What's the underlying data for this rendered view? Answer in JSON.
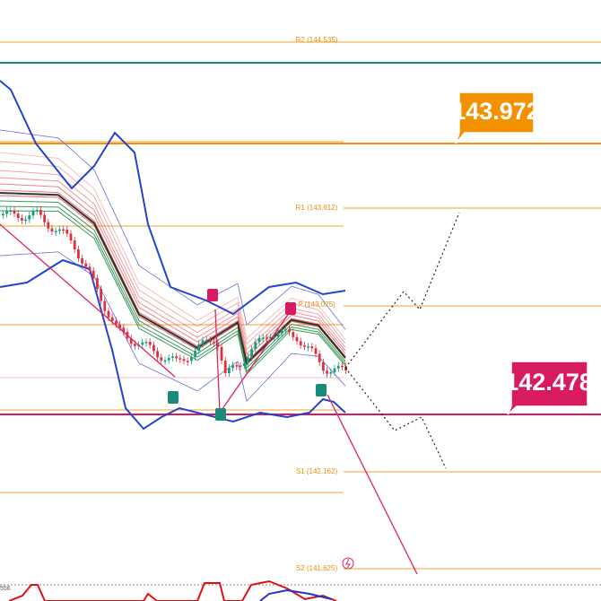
{
  "levels": [
    {
      "label": "R2 (144.535)"
    },
    {
      "label": "R1 (143.612)"
    },
    {
      "label": "P (143.075)"
    },
    {
      "label": "S1 (142.162)"
    },
    {
      "label": "S2 (141.625)"
    }
  ],
  "callouts": [
    {
      "label": "143.972"
    },
    {
      "label": "142.478"
    }
  ],
  "indicator_label": "556"
}
